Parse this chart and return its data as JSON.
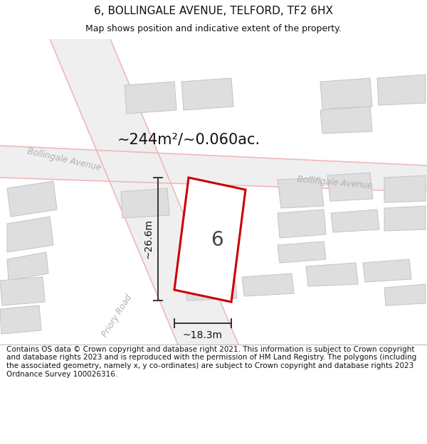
{
  "title": "6, BOLLINGALE AVENUE, TELFORD, TF2 6HX",
  "subtitle": "Map shows position and indicative extent of the property.",
  "footer": "Contains OS data © Crown copyright and database right 2021. This information is subject to Crown copyright and database rights 2023 and is reproduced with the permission of HM Land Registry. The polygons (including the associated geometry, namely x, y co-ordinates) are subject to Crown copyright and database rights 2023 Ordnance Survey 100026316.",
  "area_label": "~244m²/~0.060ac.",
  "width_label": "~18.3m",
  "height_label": "~26.6m",
  "number_label": "6",
  "map_bg": "#ffffff",
  "plot_color": "#cc0000",
  "dim_color": "#333333",
  "road_label_color": "#b0b0b0",
  "building_fill": "#dedede",
  "building_edge": "#c8c8c8",
  "road_fill": "#efefef",
  "road_edge": "#f0b8b8",
  "title_fontsize": 11,
  "subtitle_fontsize": 9,
  "footer_fontsize": 7.5
}
